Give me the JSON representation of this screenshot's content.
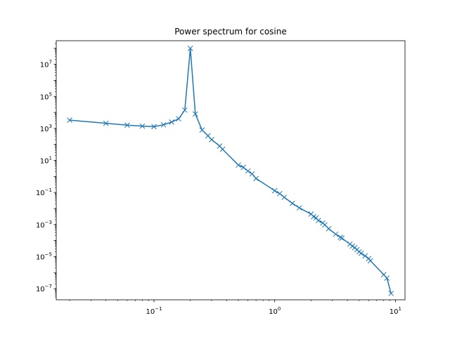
{
  "chart_data": {
    "type": "line",
    "title": "Power spectrum for cosine",
    "xlabel": "",
    "ylabel": "",
    "x_scale": "log",
    "y_scale": "log",
    "xlim": [
      0.0155,
      12.0
    ],
    "ylim": [
      2e-08,
      300000000.0
    ],
    "grid": false,
    "marker": "x",
    "series_color": "#1f77b4",
    "x_ticks": [
      {
        "value": 0.1,
        "base": "10",
        "exp": "−1"
      },
      {
        "value": 1,
        "base": "10",
        "exp": "0"
      },
      {
        "value": 10,
        "base": "10",
        "exp": "1"
      }
    ],
    "y_ticks": [
      {
        "value": 1e-07,
        "base": "10",
        "exp": "−7"
      },
      {
        "value": 1e-05,
        "base": "10",
        "exp": "−5"
      },
      {
        "value": 0.001,
        "base": "10",
        "exp": "−3"
      },
      {
        "value": 0.1,
        "base": "10",
        "exp": "−1"
      },
      {
        "value": 10.0,
        "base": "10",
        "exp": "1"
      },
      {
        "value": 1000.0,
        "base": "10",
        "exp": "3"
      },
      {
        "value": 100000.0,
        "base": "10",
        "exp": "5"
      },
      {
        "value": 10000000.0,
        "base": "10",
        "exp": "7"
      }
    ],
    "series": [
      {
        "x": [
          0.02,
          0.04,
          0.06,
          0.08,
          0.1,
          0.12,
          0.14,
          0.16,
          0.18,
          0.2,
          0.22,
          0.25,
          0.28,
          0.3,
          0.35,
          0.37,
          0.5,
          0.55,
          0.6,
          0.65,
          0.7,
          1.0,
          1.1,
          1.2,
          1.4,
          1.6,
          2.0,
          2.1,
          2.2,
          2.3,
          2.5,
          2.6,
          2.8,
          3.2,
          3.5,
          3.6,
          4.2,
          4.4,
          4.6,
          4.8,
          5.0,
          5.2,
          5.6,
          6.0,
          6.2,
          8.0,
          8.5,
          9.2
        ],
        "y": [
          3300,
          2100,
          1600,
          1400,
          1300,
          1700,
          2500,
          4000,
          14000,
          100000000,
          8000,
          800,
          350,
          200,
          80,
          50,
          5.2,
          3.7,
          2.2,
          1.45,
          0.75,
          0.13,
          0.085,
          0.05,
          0.021,
          0.011,
          0.0045,
          0.0031,
          0.0026,
          0.0018,
          0.00125,
          0.00095,
          0.00055,
          0.00025,
          0.00016,
          0.00014,
          6e-05,
          4.5e-05,
          3.6e-05,
          2.7e-05,
          2e-05,
          1.6e-05,
          1.1e-05,
          7.5e-06,
          5.5e-06,
          7.5e-07,
          4.5e-07,
          5e-08
        ]
      }
    ]
  }
}
